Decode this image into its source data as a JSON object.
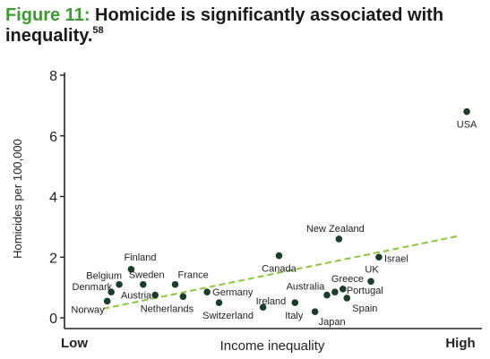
{
  "figure": {
    "label": "Figure 11:",
    "title": "Homicide is significantly associated with inequality.",
    "footnote": "58",
    "label_color": "#3f9a35"
  },
  "chart_data": {
    "type": "scatter",
    "xlabel": "Income inequality",
    "ylabel": "Homicides per 100,000",
    "x_tick_labels": [
      "Low",
      "High"
    ],
    "x_is_relative_scale": true,
    "xlim": [
      0,
      1
    ],
    "ylim": [
      0,
      8
    ],
    "y_ticks": [
      0,
      2,
      4,
      6,
      8
    ],
    "grid": false,
    "marker_color": "#1c3d2a",
    "trendline_color": "#8cc63f",
    "trendline_style": "dashed",
    "trendline": {
      "x": [
        0.07,
        0.96
      ],
      "y": [
        0.3,
        2.7
      ]
    },
    "points": [
      {
        "label": "Norway",
        "x": 0.08,
        "y": 0.55
      },
      {
        "label": "Denmark",
        "x": 0.09,
        "y": 0.85
      },
      {
        "label": "Belgium",
        "x": 0.11,
        "y": 1.1
      },
      {
        "label": "Finland",
        "x": 0.14,
        "y": 1.6
      },
      {
        "label": "Sweden",
        "x": 0.17,
        "y": 1.1
      },
      {
        "label": "Austria",
        "x": 0.2,
        "y": 0.75
      },
      {
        "label": "France",
        "x": 0.25,
        "y": 1.1
      },
      {
        "label": "Netherlands",
        "x": 0.27,
        "y": 0.7
      },
      {
        "label": "Germany",
        "x": 0.33,
        "y": 0.85
      },
      {
        "label": "Switzerland",
        "x": 0.36,
        "y": 0.5
      },
      {
        "label": "Ireland",
        "x": 0.47,
        "y": 0.35
      },
      {
        "label": "Canada",
        "x": 0.51,
        "y": 2.05
      },
      {
        "label": "Italy",
        "x": 0.55,
        "y": 0.5
      },
      {
        "label": "Australia",
        "x": 0.63,
        "y": 0.75
      },
      {
        "label": "Japan",
        "x": 0.6,
        "y": 0.2
      },
      {
        "label": "New Zealand",
        "x": 0.66,
        "y": 2.6
      },
      {
        "label": "Greece",
        "x": 0.65,
        "y": 0.85
      },
      {
        "label": "Portugal",
        "x": 0.67,
        "y": 0.95
      },
      {
        "label": "Spain",
        "x": 0.68,
        "y": 0.65
      },
      {
        "label": "UK",
        "x": 0.74,
        "y": 1.2
      },
      {
        "label": "Israel",
        "x": 0.76,
        "y": 2.0
      },
      {
        "label": "USA",
        "x": 0.98,
        "y": 6.8
      }
    ]
  }
}
